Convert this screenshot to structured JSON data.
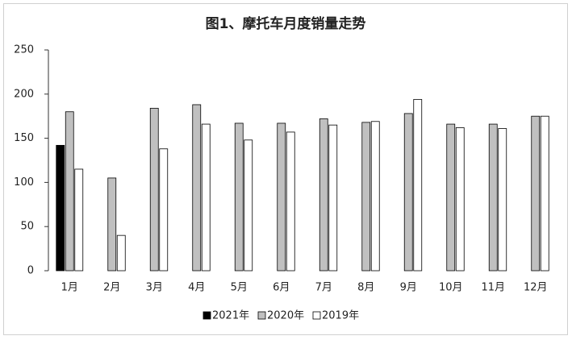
{
  "chart_data": {
    "type": "bar",
    "title": "图1、摩托车月度销量走势",
    "categories": [
      "1月",
      "2月",
      "3月",
      "4月",
      "5月",
      "6月",
      "7月",
      "8月",
      "9月",
      "10月",
      "11月",
      "12月"
    ],
    "series": [
      {
        "name": "2021年",
        "color": "#000000",
        "values": [
          142,
          null,
          null,
          null,
          null,
          null,
          null,
          null,
          null,
          null,
          null,
          null
        ]
      },
      {
        "name": "2020年",
        "color": "#c0c0c0",
        "values": [
          180,
          105,
          184,
          188,
          167,
          167,
          172,
          168,
          178,
          166,
          166,
          175
        ]
      },
      {
        "name": "2019年",
        "color": "#ffffff",
        "values": [
          115,
          40,
          138,
          166,
          148,
          157,
          165,
          169,
          194,
          162,
          161,
          175
        ]
      }
    ],
    "ylim": [
      0,
      250
    ],
    "yticks": [
      0,
      50,
      100,
      150,
      200,
      250
    ],
    "grid": false,
    "legend": "bottom"
  }
}
